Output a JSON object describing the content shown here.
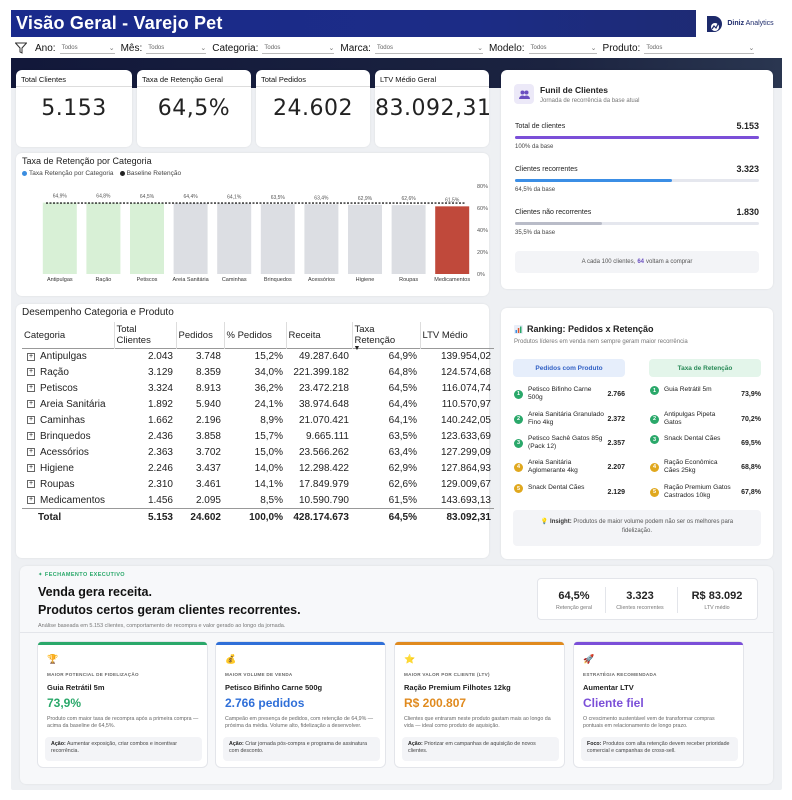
{
  "header": {
    "title": "Visão Geral - Varejo Pet",
    "brand_bold": "Diniz",
    "brand_rest": " Analytics"
  },
  "filters": [
    {
      "label": "Ano:",
      "value": "Todos"
    },
    {
      "label": "Mês:",
      "value": "Todos"
    },
    {
      "label": "Categoria:",
      "value": "Todos"
    },
    {
      "label": "Marca:",
      "value": "Todos"
    },
    {
      "label": "Modelo:",
      "value": "Todos"
    },
    {
      "label": "Produto:",
      "value": "Todos"
    }
  ],
  "kpis": [
    {
      "label": "Total Clientes",
      "value": "5.153"
    },
    {
      "label": "Taxa de Retenção Geral",
      "value": "64,5%"
    },
    {
      "label": "Total Pedidos",
      "value": "24.602"
    },
    {
      "label": "LTV Médio Geral",
      "value": "83.092,31"
    }
  ],
  "chart_data": {
    "type": "bar",
    "title": "Taxa de Retenção por Categoria",
    "legend": [
      "Taxa Retenção por Categoria",
      "Baseline Retenção"
    ],
    "categories": [
      "Antipulgas",
      "Ração",
      "Petiscos",
      "Areia Sanitária",
      "Caminhas",
      "Brinquedos",
      "Acessórios",
      "Higiene",
      "Roupas",
      "Medicamentos"
    ],
    "values": [
      64.9,
      64.8,
      64.5,
      64.4,
      64.1,
      63.5,
      63.4,
      62.9,
      62.6,
      61.5
    ],
    "value_labels": [
      "64,9%",
      "64,8%",
      "64,5%",
      "64,4%",
      "64,1%",
      "63,5%",
      "63,4%",
      "62,9%",
      "62,6%",
      "61,5%"
    ],
    "baseline": 64.5,
    "y_ticks": [
      "0%",
      "20%",
      "40%",
      "60%",
      "80%"
    ],
    "ylim": [
      0,
      80
    ],
    "colors": {
      "above": "#d8f0d6",
      "below": "#dcdee3",
      "lowest": "#c0493b",
      "baseline": "#222222",
      "legend_series": "#3a8de0"
    }
  },
  "table": {
    "title": "Desempenho Categoria e Produto",
    "headers": [
      "Categoria",
      "Total Clientes",
      "Pedidos",
      "% Pedidos",
      "Receita",
      "Taxa Retenção",
      "LTV Médio"
    ],
    "rows": [
      [
        "Antipulgas",
        "2.043",
        "3.748",
        "15,2%",
        "49.287.640",
        "64,9%",
        "139.954,02"
      ],
      [
        "Ração",
        "3.129",
        "8.359",
        "34,0%",
        "221.399.182",
        "64,8%",
        "124.574,68"
      ],
      [
        "Petiscos",
        "3.324",
        "8.913",
        "36,2%",
        "23.472.218",
        "64,5%",
        "116.074,74"
      ],
      [
        "Areia Sanitária",
        "1.892",
        "5.940",
        "24,1%",
        "38.974.648",
        "64,4%",
        "110.570,97"
      ],
      [
        "Caminhas",
        "1.662",
        "2.196",
        "8,9%",
        "21.070.421",
        "64,1%",
        "140.242,05"
      ],
      [
        "Brinquedos",
        "2.436",
        "3.858",
        "15,7%",
        "9.665.111",
        "63,5%",
        "123.633,69"
      ],
      [
        "Acessórios",
        "2.363",
        "3.702",
        "15,0%",
        "23.566.262",
        "63,4%",
        "127.299,09"
      ],
      [
        "Higiene",
        "2.246",
        "3.437",
        "14,0%",
        "12.298.422",
        "62,9%",
        "127.864,93"
      ],
      [
        "Roupas",
        "2.310",
        "3.461",
        "14,1%",
        "17.849.979",
        "62,6%",
        "129.009,67"
      ],
      [
        "Medicamentos",
        "1.456",
        "2.095",
        "8,5%",
        "10.590.790",
        "61,5%",
        "143.693,13"
      ]
    ],
    "total": [
      "Total",
      "5.153",
      "24.602",
      "100,0%",
      "428.174.673",
      "64,5%",
      "83.092,31"
    ]
  },
  "funnel": {
    "title": "Funil de Clientes",
    "subtitle": "Jornada de recorrência da base atual",
    "rows": [
      {
        "label": "Total de clientes",
        "value": "5.153",
        "pct_label": "100% da base",
        "pct": 100,
        "color": "#7b4fd8"
      },
      {
        "label": "Clientes recorrentes",
        "value": "3.323",
        "pct_label": "64,5% da base",
        "pct": 64.5,
        "color": "#3b8ee5"
      },
      {
        "label": "Clientes não recorrentes",
        "value": "1.830",
        "pct_label": "35,5% da base",
        "pct": 35.5,
        "color": "#b9bcc8"
      }
    ],
    "note_pre": "A cada 100 clientes, ",
    "note_num": "64",
    "note_post": " voltam a comprar"
  },
  "ranking": {
    "title": "Ranking: Pedidos x Retenção",
    "subtitle": "Produtos líderes em venda nem sempre geram maior recorrência",
    "tab_left": "Pedidos com Produto",
    "tab_right": "Taxa de Retenção",
    "left": [
      {
        "n": "1",
        "name": "Petisco Bifinho Carne 500g",
        "value": "2.766"
      },
      {
        "n": "2",
        "name": "Areia Sanitária Granulado Fino 4kg",
        "value": "2.372"
      },
      {
        "n": "3",
        "name": "Petisco Sachê Gatos 85g (Pack 12)",
        "value": "2.357"
      },
      {
        "n": "4",
        "name": "Areia Sanitária Aglomerante 4kg",
        "value": "2.207"
      },
      {
        "n": "5",
        "name": "Snack Dental Cães",
        "value": "2.129"
      }
    ],
    "right": [
      {
        "n": "1",
        "name": "Guia Retrátil 5m",
        "value": "73,9%"
      },
      {
        "n": "2",
        "name": "Antipulgas Pipeta Gatos",
        "value": "70,2%"
      },
      {
        "n": "3",
        "name": "Snack Dental Cães",
        "value": "69,5%"
      },
      {
        "n": "4",
        "name": "Ração Econômica Cães 25kg",
        "value": "68,8%"
      },
      {
        "n": "5",
        "name": "Ração Premium Gatos Castrados 10kg",
        "value": "67,8%"
      }
    ],
    "insight_label": "Insight:",
    "insight_text": " Produtos de maior volume podem não ser os melhores para fidelização."
  },
  "executive": {
    "tag": "✦ FECHAMENTO EXECUTIVO",
    "headline1": "Venda gera receita.",
    "headline2": "Produtos certos geram clientes recorrentes.",
    "note": "Análise baseada em 5.153 clientes, comportamento de recompra e valor gerado ao longo da jornada.",
    "mini_kpis": [
      {
        "value": "64,5%",
        "label": "Retenção geral"
      },
      {
        "value": "3.323",
        "label": "Clientes recorrentes"
      },
      {
        "value": "R$ 83.092",
        "label": "LTV médio"
      }
    ],
    "cards": [
      {
        "emoji": "🏆",
        "tag": "MAIOR POTENCIAL DE FIDELIZAÇÃO",
        "name": "Guia Retrátil 5m",
        "value": "73,9%",
        "color": "#2aa86a",
        "desc": "Produto com maior taxa de recompra após a primeira compra — acima da baseline de 64,5%.",
        "action_label": "Ação:",
        "action": " Aumentar exposição, criar combos e incentivar recorrência."
      },
      {
        "emoji": "💰",
        "tag": "MAIOR VOLUME DE VENDA",
        "name": "Petisco Bifinho Carne 500g",
        "value": "2.766 pedidos",
        "color": "#2f6fd8",
        "desc": "Campeão em presença de pedidos, com retenção de 64,9% — próxima da média. Volume alto, fidelização a desenvolver.",
        "action_label": "Ação:",
        "action": " Criar jornada pós-compra e programa de assinatura com desconto."
      },
      {
        "emoji": "⭐",
        "tag": "MAIOR VALOR POR CLIENTE (LTV)",
        "name": "Ração Premium Filhotes 12kg",
        "value": "R$ 200.807",
        "color": "#e08a1e",
        "desc": "Clientes que entraram neste produto gastam mais ao longo da vida — ideal como produto de aquisição.",
        "action_label": "Ação:",
        "action": " Priorizar em campanhas de aquisição de novos clientes."
      },
      {
        "emoji": "🚀",
        "tag": "ESTRATÉGIA RECOMENDADA",
        "name": "Aumentar LTV",
        "value": "Cliente fiel",
        "color": "#7b4fd8",
        "desc": "O crescimento sustentável vem de transformar compras pontuais em relacionamento de longo prazo.",
        "action_label": "Foco:",
        "action": " Produtos com alta retenção devem receber prioridade comercial e campanhas de cross-sell."
      }
    ]
  }
}
